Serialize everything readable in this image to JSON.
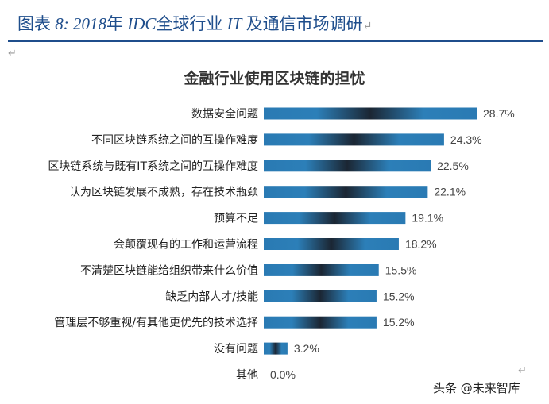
{
  "caption": {
    "prefix": "图表",
    "number": "8:",
    "year": "2018",
    "nian": "年",
    "idc": "IDC",
    "mid": "全球行业",
    "it": "IT",
    "rest": "及通信市场调研"
  },
  "watermark": "头条 @未来智库",
  "colors": {
    "accent": "#1f4e8c",
    "bar": "#2a7ab3",
    "bar_dark": "#1b2633"
  },
  "chart_data": {
    "type": "bar",
    "orientation": "horizontal",
    "title": "金融行业使用区块链的担忧",
    "categories": [
      "数据安全问题",
      "不同区块链系统之间的互操作难度",
      "区块链系统与既有IT系统之间的互操作难度",
      "认为区块链发展不成熟，存在技术瓶颈",
      "预算不足",
      "会颠覆现有的工作和运营流程",
      "不清楚区块链能给组织带来什么价值",
      "缺乏内部人才/技能",
      "管理层不够重视/有其他更优先的技术选择",
      "没有问题",
      "其他"
    ],
    "values": [
      28.7,
      24.3,
      22.5,
      22.1,
      19.1,
      18.2,
      15.5,
      15.2,
      15.2,
      3.2,
      0.0
    ],
    "data_labels": [
      "28.7%",
      "24.3%",
      "22.5%",
      "22.1%",
      "19.1%",
      "18.2%",
      "15.5%",
      "15.2%",
      "15.2%",
      "3.2%",
      "0.0%"
    ],
    "grid": false,
    "xaxis_visible": false
  }
}
